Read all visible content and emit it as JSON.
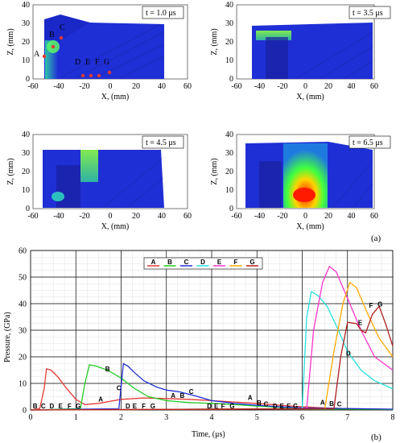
{
  "panels": [
    {
      "time_label": "t = 1.0 μs",
      "points": [
        "A",
        "B",
        "C",
        "D",
        "E",
        "F",
        "G"
      ]
    },
    {
      "time_label": "t = 3.5 μs"
    },
    {
      "time_label": "t = 4.5 μs"
    },
    {
      "time_label": "t = 6.5 μs"
    }
  ],
  "sim_axes": {
    "xlabel": "X, (mm)",
    "ylabel": "Z, (mm)",
    "x_ticks": [
      "-60",
      "-40",
      "-20",
      "0",
      "20",
      "40",
      "60"
    ],
    "y_ticks": [
      "0",
      "10",
      "20",
      "30",
      "40"
    ]
  },
  "figure_labels": {
    "a": "(a)",
    "b": "(b)"
  },
  "colors": {
    "sim_blue": "#1f2fd6",
    "sim_background": "#ffffff"
  },
  "chart_data": {
    "type": "line",
    "xlabel": "Time, (μs)",
    "ylabel": "Pressure, (GPa)",
    "xlim": [
      0,
      8
    ],
    "ylim": [
      0,
      60
    ],
    "x_ticks": [
      0,
      1,
      2,
      3,
      4,
      5,
      6,
      7,
      8
    ],
    "y_ticks": [
      0,
      10,
      20,
      30,
      40,
      50,
      60
    ],
    "grid": true,
    "legend_placement": "top-center",
    "series": [
      {
        "name": "A",
        "color": "#e53935",
        "points": [
          [
            0,
            0
          ],
          [
            0.2,
            0.5
          ],
          [
            0.3,
            8
          ],
          [
            0.35,
            15.5
          ],
          [
            0.45,
            15
          ],
          [
            0.6,
            12.5
          ],
          [
            0.8,
            8
          ],
          [
            1,
            4
          ],
          [
            1.2,
            2
          ],
          [
            1.5,
            2.5
          ],
          [
            2,
            4
          ],
          [
            2.5,
            4.5
          ],
          [
            3,
            4.3
          ],
          [
            3.5,
            4
          ],
          [
            4,
            3.5
          ],
          [
            4.5,
            3
          ],
          [
            5,
            2.5
          ],
          [
            5.5,
            1.8
          ],
          [
            6,
            1.2
          ],
          [
            6.5,
            0.8
          ],
          [
            7,
            0.5
          ],
          [
            8,
            0.2
          ]
        ]
      },
      {
        "name": "B",
        "color": "#22cc22",
        "points": [
          [
            0,
            0
          ],
          [
            1.1,
            0.5
          ],
          [
            1.2,
            10
          ],
          [
            1.3,
            17
          ],
          [
            1.45,
            16.5
          ],
          [
            1.7,
            15
          ],
          [
            2,
            12
          ],
          [
            2.3,
            8
          ],
          [
            2.6,
            5
          ],
          [
            3,
            3.5
          ],
          [
            3.5,
            2.8
          ],
          [
            4,
            2.5
          ],
          [
            4.5,
            2
          ],
          [
            5,
            1.5
          ],
          [
            5.5,
            1
          ],
          [
            6,
            0.5
          ],
          [
            8,
            0.2
          ]
        ]
      },
      {
        "name": "C",
        "color": "#1f2fd6",
        "points": [
          [
            0,
            0
          ],
          [
            1.95,
            0.5
          ],
          [
            2.05,
            17.5
          ],
          [
            2.15,
            16.5
          ],
          [
            2.3,
            14
          ],
          [
            2.5,
            11
          ],
          [
            2.8,
            8.5
          ],
          [
            3,
            7.5
          ],
          [
            3.3,
            6.8
          ],
          [
            3.6,
            5.5
          ],
          [
            4,
            3.5
          ],
          [
            4.5,
            2.5
          ],
          [
            5,
            1.8
          ],
          [
            5.5,
            1.2
          ],
          [
            6,
            0.8
          ],
          [
            8,
            0.3
          ]
        ]
      },
      {
        "name": "D",
        "color": "#26e0e0",
        "points": [
          [
            0,
            0
          ],
          [
            6,
            0.5
          ],
          [
            6.1,
            35
          ],
          [
            6.2,
            44.5
          ],
          [
            6.35,
            43
          ],
          [
            6.55,
            39
          ],
          [
            6.8,
            30
          ],
          [
            7,
            22
          ],
          [
            7.3,
            15
          ],
          [
            7.6,
            11
          ],
          [
            8,
            8
          ]
        ]
      },
      {
        "name": "E",
        "color": "#ff33cc",
        "points": [
          [
            0,
            0
          ],
          [
            6.1,
            0.5
          ],
          [
            6.25,
            30
          ],
          [
            6.45,
            48
          ],
          [
            6.6,
            54
          ],
          [
            6.75,
            52
          ],
          [
            7,
            42
          ],
          [
            7.3,
            30
          ],
          [
            7.6,
            20
          ],
          [
            8,
            15
          ]
        ]
      },
      {
        "name": "F",
        "color": "#ffaa00",
        "points": [
          [
            0,
            0
          ],
          [
            6.5,
            0.5
          ],
          [
            6.7,
            22
          ],
          [
            6.9,
            40
          ],
          [
            7.05,
            48
          ],
          [
            7.2,
            46
          ],
          [
            7.45,
            36
          ],
          [
            7.7,
            27
          ],
          [
            8,
            20
          ]
        ]
      },
      {
        "name": "G",
        "color": "#b02020",
        "points": [
          [
            0,
            0
          ],
          [
            6.7,
            0.5
          ],
          [
            6.85,
            20
          ],
          [
            7,
            33
          ],
          [
            7.2,
            32.5
          ],
          [
            7.3,
            30
          ],
          [
            7.4,
            29
          ],
          [
            7.55,
            36
          ],
          [
            7.7,
            39
          ],
          [
            7.85,
            32
          ],
          [
            8,
            24
          ]
        ]
      }
    ],
    "curve_labels": [
      {
        "text": "B",
        "x": 0.1,
        "y": 0.6,
        "color": "#000"
      },
      {
        "text": "C",
        "x": 0.28,
        "y": 0.6,
        "color": "#000"
      },
      {
        "text": "D",
        "x": 0.47,
        "y": 0.6,
        "color": "#000"
      },
      {
        "text": "E",
        "x": 0.66,
        "y": 0.6,
        "color": "#000"
      },
      {
        "text": "F",
        "x": 0.86,
        "y": 0.6,
        "color": "#000"
      },
      {
        "text": "G",
        "x": 1.05,
        "y": 0.6,
        "color": "#000"
      },
      {
        "text": "A",
        "x": 1.55,
        "y": 3.2,
        "color": "#000"
      },
      {
        "text": "B",
        "x": 1.7,
        "y": 14.5,
        "color": "#000"
      },
      {
        "text": "C",
        "x": 1.95,
        "y": 7.5,
        "color": "#000"
      },
      {
        "text": "D",
        "x": 2.15,
        "y": 0.6,
        "color": "#000"
      },
      {
        "text": "E",
        "x": 2.3,
        "y": 0.6,
        "color": "#000"
      },
      {
        "text": "F",
        "x": 2.5,
        "y": 0.6,
        "color": "#000"
      },
      {
        "text": "G",
        "x": 2.7,
        "y": 0.6,
        "color": "#000"
      },
      {
        "text": "A",
        "x": 3.15,
        "y": 4.5,
        "color": "#000"
      },
      {
        "text": "B",
        "x": 3.35,
        "y": 4.5,
        "color": "#000"
      },
      {
        "text": "C",
        "x": 3.55,
        "y": 6.0,
        "color": "#000"
      },
      {
        "text": "D",
        "x": 3.95,
        "y": 0.6,
        "color": "#000"
      },
      {
        "text": "E",
        "x": 4.1,
        "y": 0.6,
        "color": "#000"
      },
      {
        "text": "F",
        "x": 4.25,
        "y": 0.6,
        "color": "#000"
      },
      {
        "text": "G",
        "x": 4.45,
        "y": 0.6,
        "color": "#000"
      },
      {
        "text": "A",
        "x": 4.85,
        "y": 3.8,
        "color": "#000"
      },
      {
        "text": "B",
        "x": 5.05,
        "y": 1.8,
        "color": "#000"
      },
      {
        "text": "C",
        "x": 5.2,
        "y": 1.4,
        "color": "#000"
      },
      {
        "text": "D",
        "x": 5.4,
        "y": 0.6,
        "color": "#000"
      },
      {
        "text": "E",
        "x": 5.55,
        "y": 0.6,
        "color": "#000"
      },
      {
        "text": "F",
        "x": 5.7,
        "y": 0.6,
        "color": "#000"
      },
      {
        "text": "G",
        "x": 5.85,
        "y": 0.6,
        "color": "#000"
      },
      {
        "text": "A",
        "x": 6.45,
        "y": 2.0,
        "color": "#000"
      },
      {
        "text": "B",
        "x": 6.65,
        "y": 1.5,
        "color": "#000"
      },
      {
        "text": "C",
        "x": 6.82,
        "y": 1.3,
        "color": "#000"
      },
      {
        "text": "D",
        "x": 7.02,
        "y": 20.5,
        "color": "#000"
      },
      {
        "text": "E",
        "x": 7.28,
        "y": 32.0,
        "color": "#000"
      },
      {
        "text": "F",
        "x": 7.52,
        "y": 38.5,
        "color": "#000"
      },
      {
        "text": "G",
        "x": 7.72,
        "y": 39.0,
        "color": "#000"
      }
    ]
  }
}
